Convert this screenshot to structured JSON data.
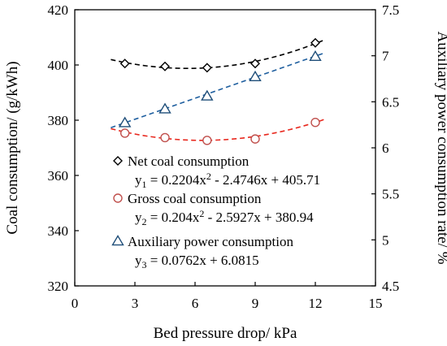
{
  "chart_data": {
    "type": "scatter",
    "xlabel": "Bed pressure drop/ kPa",
    "ylabel_left": "Coal consumption/ (g/kWh)",
    "ylabel_right": "Auxiliary power consumption rate/ %",
    "xlim": [
      0,
      15
    ],
    "ylim_left": [
      320,
      420
    ],
    "ylim_right": [
      4.5,
      7.5
    ],
    "x_ticks": [
      "0",
      "3",
      "6",
      "9",
      "12",
      "15"
    ],
    "y_left_ticks": [
      "320",
      "340",
      "360",
      "380",
      "400",
      "420"
    ],
    "y_right_ticks": [
      "4.5",
      "5",
      "5.5",
      "6",
      "6.5",
      "7",
      "7.5"
    ],
    "grid": false,
    "legend_position": "bottom-right",
    "series": [
      {
        "name": "Net coal consumption",
        "axis": "left",
        "marker": "diamond",
        "color": "#000000",
        "fit_color": "#000000",
        "x": [
          2.5,
          4.5,
          6.6,
          9.0,
          12.0
        ],
        "y": [
          400.5,
          399.5,
          399.0,
          400.5,
          408.0
        ],
        "fit_label_prefix": "y",
        "fit_label_sub": "1",
        "fit_label_rest": " = 0.2204x",
        "fit_label_sup": "2",
        "fit_label_tail": " - 2.4746x + 405.71",
        "fit": {
          "a": 0.2204,
          "b": -2.4746,
          "c": 405.71
        }
      },
      {
        "name": "Gross coal consumption",
        "axis": "left",
        "marker": "circle",
        "color": "#c0504d",
        "fit_color": "#e8281e",
        "x": [
          2.5,
          4.5,
          6.6,
          9.0,
          12.0
        ],
        "y": [
          375.3,
          373.7,
          372.7,
          373.2,
          379.2
        ],
        "fit_label_prefix": "y",
        "fit_label_sub": "2",
        "fit_label_rest": " = 0.204x",
        "fit_label_sup": "2",
        "fit_label_tail": " - 2.5927x + 380.94",
        "fit": {
          "a": 0.204,
          "b": -2.5927,
          "c": 380.94
        }
      },
      {
        "name": "Auxiliary power consumption",
        "axis": "right",
        "marker": "triangle",
        "color": "#1f4e79",
        "fit_color": "#1f5f9f",
        "x": [
          2.5,
          4.5,
          6.6,
          9.0,
          12.0
        ],
        "y": [
          6.27,
          6.42,
          6.56,
          6.77,
          6.99
        ],
        "fit_label_prefix": "y",
        "fit_label_sub": "3",
        "fit_label_rest": " = 0.0762x + 6.0815",
        "fit_label_sup": "",
        "fit_label_tail": "",
        "fit": {
          "a": 0,
          "b": 0.0762,
          "c": 6.0815
        }
      }
    ]
  }
}
